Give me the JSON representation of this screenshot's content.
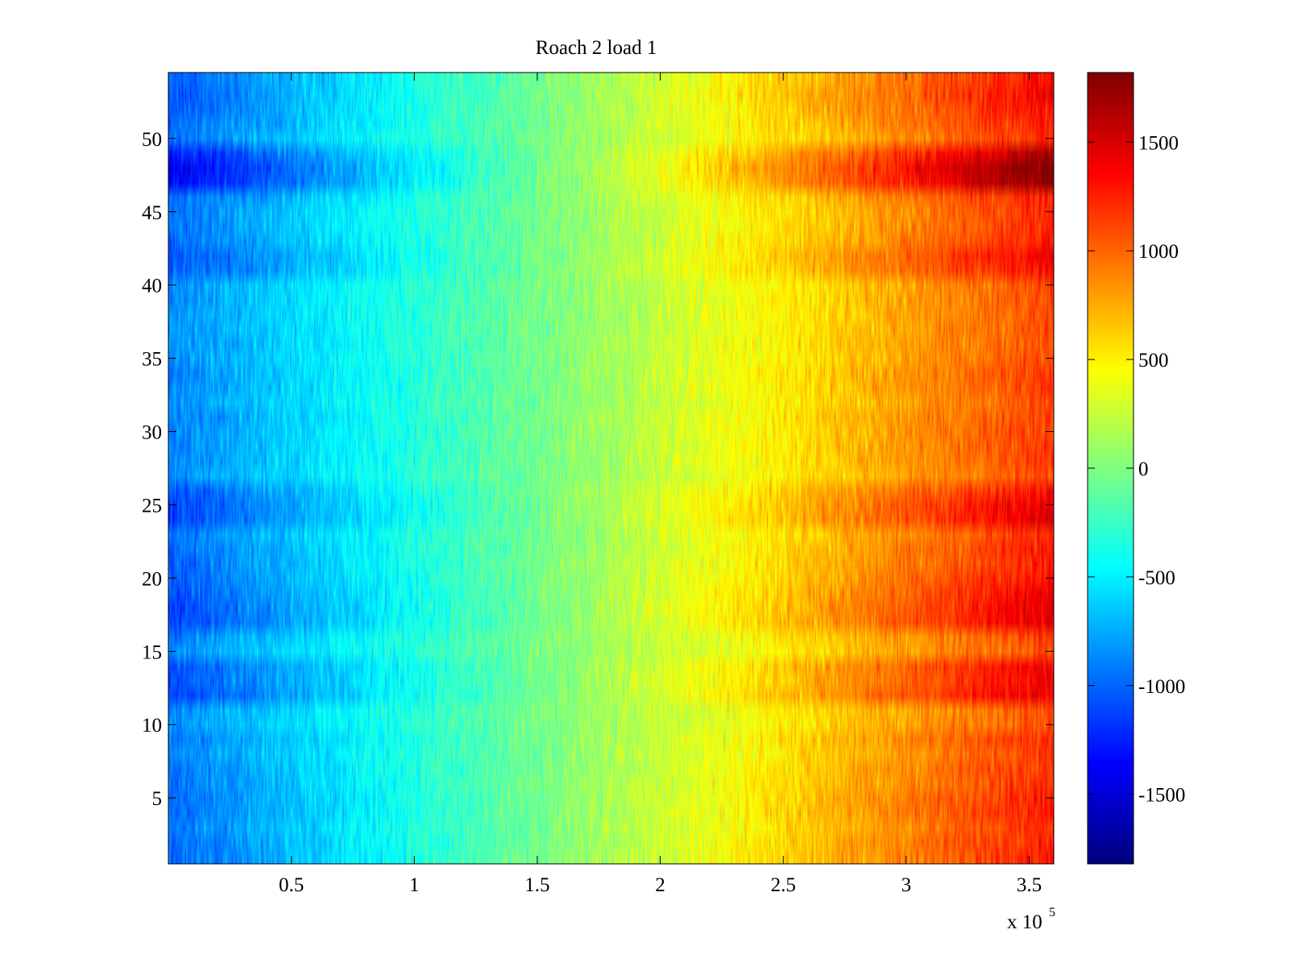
{
  "chart_data": {
    "type": "heatmap",
    "title": "Roach 2 load 1",
    "xlabel": "",
    "ylabel": "",
    "x_multiplier": "x 10",
    "x_multiplier_exponent": "5",
    "xlim": [
      0,
      360000
    ],
    "ylim": [
      0.5,
      54.5
    ],
    "rows": 54,
    "x_ticks": [
      {
        "value": 50000,
        "label": "0.5"
      },
      {
        "value": 100000,
        "label": "1"
      },
      {
        "value": 150000,
        "label": "1.5"
      },
      {
        "value": 200000,
        "label": "2"
      },
      {
        "value": 250000,
        "label": "2.5"
      },
      {
        "value": 300000,
        "label": "3"
      },
      {
        "value": 350000,
        "label": "3.5"
      }
    ],
    "y_ticks": [
      {
        "value": 5,
        "label": "5"
      },
      {
        "value": 10,
        "label": "10"
      },
      {
        "value": 15,
        "label": "15"
      },
      {
        "value": 20,
        "label": "20"
      },
      {
        "value": 25,
        "label": "25"
      },
      {
        "value": 30,
        "label": "30"
      },
      {
        "value": 35,
        "label": "35"
      },
      {
        "value": 40,
        "label": "40"
      },
      {
        "value": 45,
        "label": "45"
      },
      {
        "value": 50,
        "label": "50"
      }
    ],
    "colorbar": {
      "colormap": "jet",
      "range": [
        -1820,
        1820
      ],
      "ticks": [
        {
          "value": -1500,
          "label": "-1500"
        },
        {
          "value": -1000,
          "label": "-1000"
        },
        {
          "value": -500,
          "label": "-500"
        },
        {
          "value": 0,
          "label": "0"
        },
        {
          "value": 500,
          "label": "500"
        },
        {
          "value": 1000,
          "label": "1000"
        },
        {
          "value": 1500,
          "label": "1500"
        }
      ]
    },
    "trend": {
      "left_value": -1000,
      "right_value": 1300,
      "noise": 170
    },
    "row_strength": [
      1.05,
      1.1,
      1.05,
      1.0,
      0.95,
      1.3,
      1.45,
      1.4,
      1.0,
      0.95,
      0.95,
      1.0,
      1.1,
      1.05,
      0.85,
      0.85,
      0.85,
      0.85,
      0.85,
      0.85,
      0.9,
      0.9,
      0.85,
      0.9,
      0.9,
      0.9,
      0.9,
      0.85,
      1.05,
      1.15,
      1.15,
      0.95,
      1.0,
      1.0,
      1.05,
      1.1,
      1.15,
      1.15,
      0.9,
      0.85,
      1.1,
      1.1,
      1.15,
      0.85,
      0.85,
      0.95,
      0.9,
      0.95,
      0.95,
      1.0,
      1.0,
      0.95,
      1.0,
      1.0
    ],
    "grid": false,
    "legend": "colorbar-right"
  }
}
